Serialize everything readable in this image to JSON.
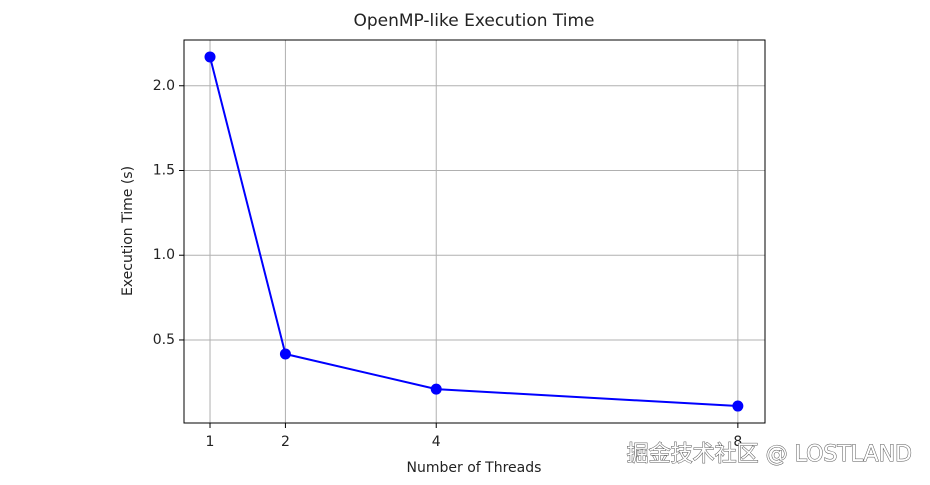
{
  "chart_data": {
    "type": "line",
    "title": "OpenMP-like Execution Time",
    "x_label": "Number of Threads",
    "y_label": "Execution Time (s)",
    "x": [
      1,
      2,
      4,
      8
    ],
    "series": [
      {
        "name": "Execution Time",
        "color": "#0000ff",
        "values": [
          2.17,
          0.417,
          0.21,
          0.11
        ]
      }
    ],
    "xlim": [
      0.655,
      8.36
    ],
    "xticks": [
      1,
      2,
      4,
      8
    ],
    "ylim": [
      0.01,
      2.27
    ],
    "yticks": [
      {
        "value": 0.5,
        "label": "0.5"
      },
      {
        "value": 1.0,
        "label": "1.0"
      },
      {
        "value": 1.5,
        "label": "1.5"
      },
      {
        "value": 2.0,
        "label": "2.0"
      }
    ],
    "grid": true,
    "legend": false,
    "annotation": "掘金技术社区 @ LOSTLAND"
  }
}
